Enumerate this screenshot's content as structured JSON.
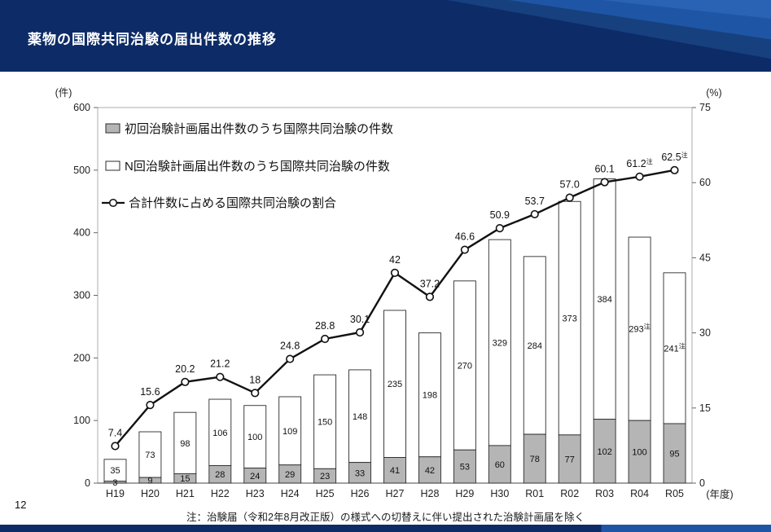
{
  "header": {
    "title": "薬物の国際共同治験の届出件数の推移"
  },
  "footer": {
    "note": "注：治験届（令和2年8月改正版）の様式への切替えに伴い提出された治験計画届を除く",
    "page_number": "12"
  },
  "chart_data": {
    "type": "stacked-bar-line",
    "categories": [
      "H19",
      "H20",
      "H21",
      "H22",
      "H23",
      "H24",
      "H25",
      "H26",
      "H27",
      "H28",
      "H29",
      "H30",
      "R01",
      "R02",
      "R03",
      "R04",
      "R05"
    ],
    "series": [
      {
        "name": "初回治験計画届出件数のうち国際共同治験の件数",
        "role": "bar-gray",
        "values": [
          3,
          9,
          15,
          28,
          24,
          29,
          23,
          33,
          41,
          42,
          53,
          60,
          78,
          77,
          102,
          100,
          95
        ]
      },
      {
        "name": "N回治験計画届出件数のうち国際共同治験の件数",
        "role": "bar-white",
        "values": [
          35,
          73,
          98,
          106,
          100,
          109,
          150,
          148,
          235,
          198,
          270,
          329,
          284,
          373,
          384,
          293,
          241
        ]
      },
      {
        "name": "合計件数に占める国際共同治験の割合",
        "role": "line",
        "values": [
          7.4,
          15.6,
          20.2,
          21.2,
          18,
          24.8,
          28.8,
          30.1,
          42,
          37.2,
          46.6,
          50.9,
          53.7,
          57.0,
          60.1,
          61.2,
          62.5
        ]
      }
    ],
    "labels": {
      "gray": [
        "3",
        "9",
        "15",
        "28",
        "24",
        "29",
        "23",
        "33",
        "41",
        "42",
        "53",
        "60",
        "78",
        "77",
        "102",
        "100",
        "95"
      ],
      "white": [
        "35",
        "73",
        "98",
        "106",
        "100",
        "109",
        "150",
        "148",
        "235",
        "198",
        "270",
        "329",
        "284",
        "373",
        "384",
        "293注",
        "241注"
      ],
      "line": [
        "7.4",
        "15.6",
        "20.2",
        "21.2",
        "18",
        "24.8",
        "28.8",
        "30.1",
        "42",
        "37.2",
        "46.6",
        "50.9",
        "53.7",
        "57.0",
        "60.1",
        "61.2注",
        "62.5注"
      ]
    },
    "left_axis": {
      "unit": "(件)",
      "ticks": [
        0,
        100,
        200,
        300,
        400,
        500,
        600
      ],
      "max": 600
    },
    "right_axis": {
      "unit": "(%)",
      "ticks": [
        0,
        15,
        30,
        45,
        60,
        75
      ],
      "max": 75
    },
    "x_axis_unit": "(年度)",
    "colors": {
      "bar_gray": "#b5b5b5",
      "bar_white": "#ffffff",
      "bar_border": "#2b2b2b",
      "line": "#111111",
      "header_navy": "#0d2b66"
    }
  }
}
